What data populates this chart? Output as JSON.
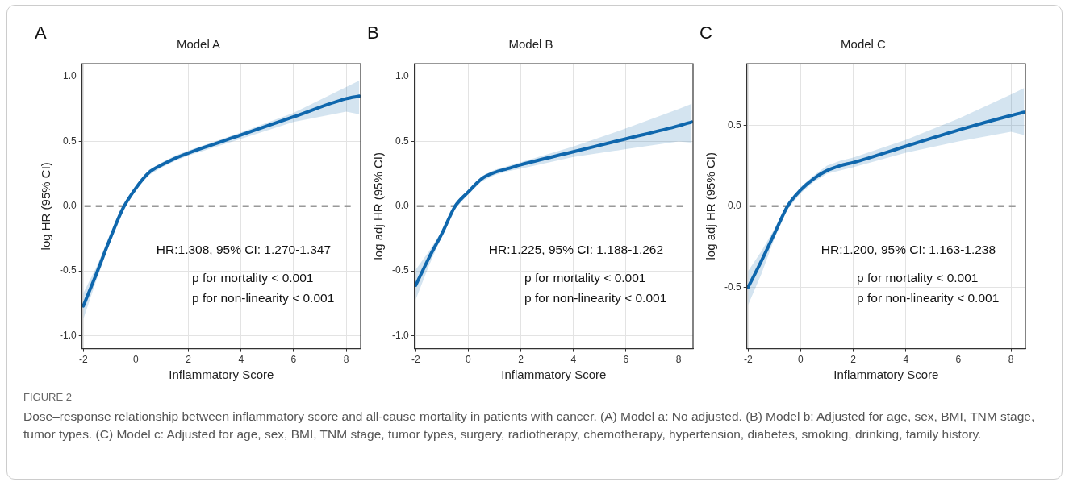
{
  "chart_data": [
    {
      "type": "line",
      "title": "Model A",
      "xlabel": "Inflammatory Score",
      "ylabel": "log HR (95% CI)",
      "xlim": [
        -2.05,
        8.55
      ],
      "xticks": [
        -2,
        0,
        2,
        4,
        6,
        8
      ],
      "ylim": [
        -1.1,
        1.1
      ],
      "yticks": [
        {
          "value": -1,
          "label": "-1.0"
        },
        {
          "value": -0.5,
          "label": "-0.5"
        },
        {
          "value": 0,
          "label": "0.0"
        },
        {
          "value": 0.5,
          "label": "0.5"
        },
        {
          "value": 1,
          "label": "1.0"
        }
      ],
      "grid": true,
      "legend": false,
      "marker": "none",
      "line_style": "solid",
      "x": [
        -2,
        -1.5,
        -1,
        -0.5,
        0,
        0.5,
        1,
        1.5,
        2,
        4,
        6,
        8,
        8.5
      ],
      "series": [
        {
          "color": "#0f67ae",
          "values": [
            -0.77,
            -0.52,
            -0.26,
            -0.02,
            0.14,
            0.26,
            0.32,
            0.37,
            0.41,
            0.55,
            0.69,
            0.83,
            0.85
          ],
          "lower": [
            -0.87,
            -0.57,
            -0.29,
            -0.04,
            0.13,
            0.24,
            0.3,
            0.35,
            0.39,
            0.52,
            0.65,
            0.73,
            0.71
          ],
          "upper": [
            -0.67,
            -0.47,
            -0.23,
            0.0,
            0.16,
            0.28,
            0.34,
            0.39,
            0.43,
            0.57,
            0.72,
            0.92,
            0.97
          ]
        }
      ],
      "ref_lines": [
        {
          "axis": "y",
          "value": 0,
          "color": "#999999",
          "line_style": "dashed"
        }
      ],
      "annotations": [
        "A",
        "HR:1.308, 95% CI: 1.270-1.347",
        "p for mortality < 0.001",
        "p for non-linearity < 0.001"
      ]
    },
    {
      "type": "line",
      "title": "Model B",
      "xlabel": "Inflammatory Score",
      "ylabel": "log adj HR (95% CI)",
      "xlim": [
        -2.05,
        8.55
      ],
      "xticks": [
        -2,
        0,
        2,
        4,
        6,
        8
      ],
      "ylim": [
        -1.1,
        1.1
      ],
      "yticks": [
        {
          "value": -1,
          "label": "-1.0"
        },
        {
          "value": -0.5,
          "label": "-0.5"
        },
        {
          "value": 0,
          "label": "0.0"
        },
        {
          "value": 0.5,
          "label": "0.5"
        },
        {
          "value": 1,
          "label": "1.0"
        }
      ],
      "grid": true,
      "legend": false,
      "marker": "none",
      "line_style": "solid",
      "x": [
        -2,
        -1.5,
        -1,
        -0.5,
        0,
        0.5,
        1,
        1.5,
        2,
        4,
        6,
        8,
        8.5
      ],
      "series": [
        {
          "color": "#0f67ae",
          "values": [
            -0.61,
            -0.4,
            -0.21,
            0.0,
            0.11,
            0.21,
            0.26,
            0.29,
            0.32,
            0.42,
            0.52,
            0.62,
            0.65
          ],
          "lower": [
            -0.72,
            -0.46,
            -0.23,
            -0.02,
            0.09,
            0.19,
            0.24,
            0.27,
            0.29,
            0.38,
            0.44,
            0.5,
            0.49
          ],
          "upper": [
            -0.49,
            -0.35,
            -0.19,
            0.02,
            0.13,
            0.23,
            0.28,
            0.31,
            0.34,
            0.46,
            0.6,
            0.75,
            0.79
          ]
        }
      ],
      "ref_lines": [
        {
          "axis": "y",
          "value": 0,
          "color": "#999999",
          "line_style": "dashed"
        }
      ],
      "annotations": [
        "B",
        "HR:1.225, 95% CI: 1.188-1.262",
        "p for mortality < 0.001",
        "p for non-linearity < 0.001"
      ]
    },
    {
      "type": "line",
      "title": "Model C",
      "xlabel": "Inflammatory Score",
      "ylabel": "log adj HR (95% CI)",
      "xlim": [
        -2.05,
        8.55
      ],
      "xticks": [
        -2,
        0,
        2,
        4,
        6,
        8
      ],
      "ylim": [
        -0.88,
        0.88
      ],
      "yticks": [
        {
          "value": -0.5,
          "label": "-0.5"
        },
        {
          "value": 0,
          "label": "0.0"
        },
        {
          "value": 0.5,
          "label": "0.5"
        }
      ],
      "grid": true,
      "legend": false,
      "marker": "none",
      "line_style": "solid",
      "x": [
        -2,
        -1.5,
        -1,
        -0.5,
        0,
        0.5,
        1,
        1.5,
        2,
        4,
        6,
        8,
        8.5
      ],
      "series": [
        {
          "color": "#0f67ae",
          "values": [
            -0.5,
            -0.34,
            -0.17,
            0.0,
            0.1,
            0.17,
            0.22,
            0.25,
            0.27,
            0.37,
            0.47,
            0.56,
            0.58
          ],
          "lower": [
            -0.61,
            -0.42,
            -0.2,
            -0.02,
            0.08,
            0.15,
            0.2,
            0.22,
            0.24,
            0.33,
            0.4,
            0.46,
            0.44
          ],
          "upper": [
            -0.4,
            -0.28,
            -0.14,
            0.02,
            0.12,
            0.19,
            0.25,
            0.28,
            0.3,
            0.41,
            0.54,
            0.69,
            0.73
          ]
        }
      ],
      "ref_lines": [
        {
          "axis": "y",
          "value": 0,
          "color": "#999999",
          "line_style": "dashed"
        }
      ],
      "annotations": [
        "C",
        "HR:1.200, 95% CI: 1.163-1.238",
        "p for mortality < 0.001",
        "p for non-linearity < 0.001",
        "FIGURE 2",
        "Dose–response relationship between inflammatory score and all-cause mortality in patients with cancer. (A) Model a: No adjusted. (B) Model b: Adjusted for age, sex, BMI, TNM stage, tumor types. (C) Model c: Adjusted for age, sex, BMI, TNM stage, tumor types, surgery, radiotherapy, chemotherapy, hypertension, diabetes, smoking, drinking, family history."
      ]
    }
  ]
}
